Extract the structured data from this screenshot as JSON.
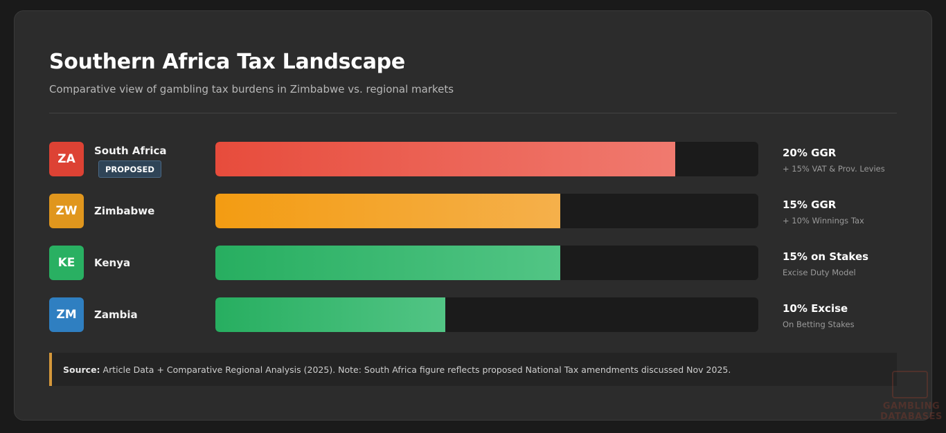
{
  "header": {
    "title": "Southern Africa Tax Landscape",
    "subtitle": "Comparative view of gambling tax burdens in Zimbabwe vs. regional markets"
  },
  "chart_data": {
    "type": "bar",
    "orientation": "horizontal",
    "categories": [
      "South Africa",
      "Zimbabwe",
      "Kenya",
      "Zambia"
    ],
    "values": [
      20,
      15,
      15,
      10
    ],
    "unit": "%",
    "grid": false,
    "legend": "none",
    "rows": [
      {
        "code": "ZA",
        "country": "South Africa",
        "tag": "PROPOSED",
        "value": 20,
        "rate_label": "20% GGR",
        "note": "+ 15% VAT & Prov. Levies",
        "badge_color": "#dd4234",
        "fill_from": "#e74c3c",
        "fill_to": "#f07a6f"
      },
      {
        "code": "ZW",
        "country": "Zimbabwe",
        "value": 15,
        "rate_label": "15% GGR",
        "note": "+ 10% Winnings Tax",
        "badge_color": "#e0961d",
        "fill_from": "#f39c12",
        "fill_to": "#f5b04b"
      },
      {
        "code": "KE",
        "country": "Kenya",
        "value": 15,
        "rate_label": "15% on Stakes",
        "note": "Excise Duty Model",
        "badge_color": "#29b062",
        "fill_from": "#27ae60",
        "fill_to": "#52c585"
      },
      {
        "code": "ZM",
        "country": "Zambia",
        "value": 10,
        "rate_label": "10% Excise",
        "note": "On Betting Stakes",
        "badge_color": "#2f7fc1",
        "fill_from": "#27ae60",
        "fill_to": "#52c585"
      }
    ]
  },
  "footer": {
    "source_label": "Source:",
    "source_text": "Article Data + Comparative Regional Analysis (2025). Note: South Africa figure reflects proposed National Tax amendments discussed Nov 2025."
  },
  "watermark": {
    "text": "GAMBLING DATABASES"
  }
}
